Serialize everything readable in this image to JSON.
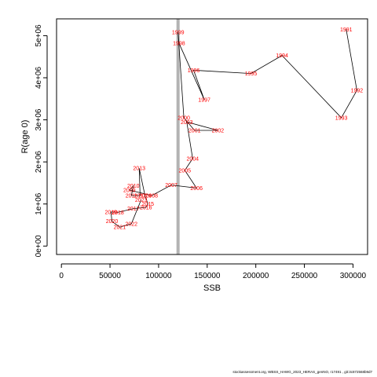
{
  "chart_data": {
    "type": "line",
    "title": "",
    "xlabel": "SSB",
    "ylabel": "R(age 0)",
    "xlim": [
      -5000,
      315000
    ],
    "ylim": [
      -200000,
      5400000
    ],
    "xticks": [
      0,
      50000,
      100000,
      150000,
      200000,
      250000,
      300000
    ],
    "xtick_labels": [
      "0",
      "50000",
      "100000",
      "150000",
      "200000",
      "250000",
      "300000"
    ],
    "yticks": [
      0,
      1000000,
      2000000,
      3000000,
      4000000,
      5000000
    ],
    "ytick_labels": [
      "0e+00",
      "1e+06",
      "2e+06",
      "3e+06",
      "4e+06",
      "5e+06"
    ],
    "reference_line": {
      "orientation": "vertical",
      "x": 120000,
      "color": "#b3b3b3"
    },
    "line_color": "#000000",
    "label_color": "#ff0000",
    "grid": false,
    "points": [
      {
        "year": "1991",
        "ssb": 293000,
        "r": 5150000
      },
      {
        "year": "1992",
        "ssb": 304000,
        "r": 3700000
      },
      {
        "year": "1993",
        "ssb": 288000,
        "r": 3050000
      },
      {
        "year": "1994",
        "ssb": 227000,
        "r": 4530000
      },
      {
        "year": "1995",
        "ssb": 195000,
        "r": 4100000
      },
      {
        "year": "1996",
        "ssb": 136000,
        "r": 4180000
      },
      {
        "year": "1997",
        "ssb": 147000,
        "r": 3480000
      },
      {
        "year": "1998",
        "ssb": 121000,
        "r": 4820000
      },
      {
        "year": "1999",
        "ssb": 120000,
        "r": 5080000
      },
      {
        "year": "2000",
        "ssb": 126000,
        "r": 3050000
      },
      {
        "year": "2001",
        "ssb": 137000,
        "r": 2750000
      },
      {
        "year": "2002",
        "ssb": 161000,
        "r": 2750000
      },
      {
        "year": "2003",
        "ssb": 129000,
        "r": 2950000
      },
      {
        "year": "2004",
        "ssb": 135000,
        "r": 2080000
      },
      {
        "year": "2005",
        "ssb": 127000,
        "r": 1800000
      },
      {
        "year": "2006",
        "ssb": 139000,
        "r": 1380000
      },
      {
        "year": "2007",
        "ssb": 113000,
        "r": 1450000
      },
      {
        "year": "2008",
        "ssb": 93000,
        "r": 1200000
      },
      {
        "year": "2009",
        "ssb": 70000,
        "r": 1330000
      },
      {
        "year": "2010",
        "ssb": 74000,
        "r": 1430000
      },
      {
        "year": "2011",
        "ssb": 72000,
        "r": 1200000
      },
      {
        "year": "2012",
        "ssb": 81000,
        "r": 1200000
      },
      {
        "year": "2013",
        "ssb": 80000,
        "r": 1850000
      },
      {
        "year": "2014",
        "ssb": 86000,
        "r": 1200000
      },
      {
        "year": "2015",
        "ssb": 89000,
        "r": 1000000
      },
      {
        "year": "2016",
        "ssb": 87000,
        "r": 920000
      },
      {
        "year": "2017",
        "ssb": 74000,
        "r": 890000
      },
      {
        "year": "2018",
        "ssb": 58000,
        "r": 800000
      },
      {
        "year": "2019",
        "ssb": 51000,
        "r": 810000
      },
      {
        "year": "2020",
        "ssb": 52000,
        "r": 590000
      },
      {
        "year": "2021",
        "ssb": 60000,
        "r": 450000
      },
      {
        "year": "2022",
        "ssb": 72000,
        "r": 530000
      },
      {
        "year": "2023",
        "ssb": 82000,
        "r": 1100000
      }
    ]
  },
  "footer": {
    "text": "stockassessment.org, WBSS_HAWG_2023_HERAS_genNO, r17491 , git:3c872568b9d7"
  }
}
